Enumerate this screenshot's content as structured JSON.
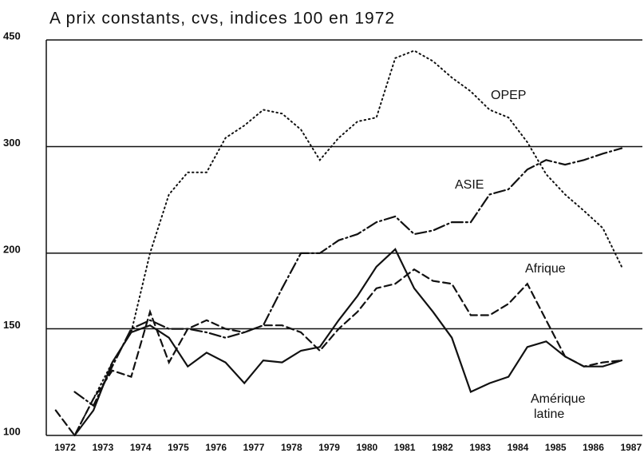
{
  "chart_data": {
    "type": "line",
    "title": "A prix constants, cvs, indices 100 en 1972",
    "x": [
      1971.75,
      1972.25,
      1972.75,
      1973.25,
      1973.75,
      1974.25,
      1974.75,
      1975.25,
      1975.75,
      1976.25,
      1976.75,
      1977.25,
      1977.75,
      1978.25,
      1978.75,
      1979.25,
      1979.75,
      1980.25,
      1980.75,
      1981.25,
      1981.75,
      1982.25,
      1982.75,
      1983.25,
      1983.75,
      1984.25,
      1984.75,
      1985.25,
      1985.75,
      1986.25,
      1986.75
    ],
    "series": [
      {
        "name": "OPEP",
        "color": "#111",
        "style": "dotted",
        "values": [
          null,
          100,
          115,
          132,
          148,
          200,
          250,
          272,
          272,
          310,
          325,
          345,
          340,
          320,
          285,
          310,
          330,
          335,
          420,
          432,
          415,
          390,
          370,
          345,
          335,
          305,
          270,
          250,
          235,
          220,
          190
        ]
      },
      {
        "name": "ASIE",
        "color": "#111",
        "style": "dashdot",
        "values": [
          null,
          118,
          112,
          130,
          150,
          155,
          150,
          150,
          148,
          145,
          148,
          152,
          175,
          200,
          200,
          210,
          215,
          225,
          230,
          215,
          218,
          225,
          225,
          250,
          255,
          275,
          285,
          280,
          285,
          292,
          298
        ]
      },
      {
        "name": "Afrique",
        "color": "#111",
        "style": "dashed",
        "values": [
          110,
          100,
          115,
          128,
          125,
          160,
          132,
          150,
          155,
          150,
          148,
          152,
          152,
          148,
          138,
          150,
          160,
          175,
          178,
          188,
          180,
          178,
          158,
          158,
          165,
          178,
          155,
          135,
          130,
          132,
          133
        ]
      },
      {
        "name": "Amérique latine",
        "color": "#111",
        "style": "solid",
        "values": [
          null,
          100,
          110,
          132,
          148,
          152,
          145,
          130,
          137,
          132,
          122,
          133,
          132,
          138,
          140,
          155,
          170,
          190,
          203,
          175,
          160,
          145,
          118,
          122,
          125,
          140,
          143,
          135,
          130,
          130,
          133
        ]
      }
    ],
    "xlim": [
      1971.5,
      1987.3
    ],
    "xticks": [
      1972,
      1973,
      1974,
      1975,
      1976,
      1977,
      1978,
      1979,
      1980,
      1981,
      1982,
      1983,
      1984,
      1985,
      1986,
      1987
    ],
    "ylim": [
      100,
      450
    ],
    "yticks": [
      100,
      150,
      200,
      300,
      450
    ],
    "log_y": true,
    "grid": true
  }
}
